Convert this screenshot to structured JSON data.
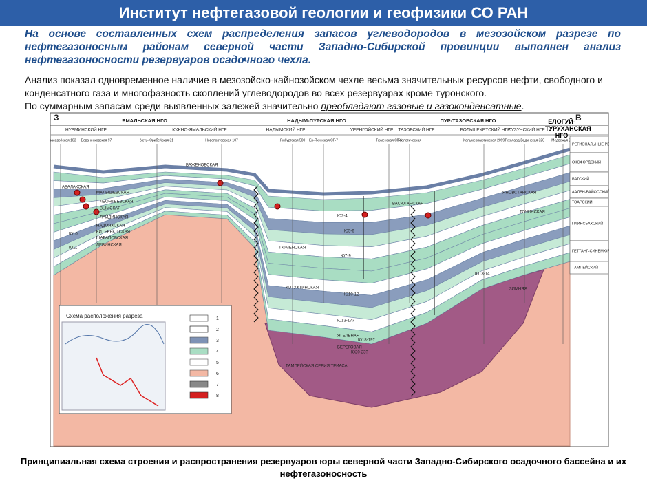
{
  "header": {
    "title": "Институт нефтегазовой геологии и геофизики  СО РАН"
  },
  "intro": {
    "text": "На основе составленных схем распределения запасов углеводородов в мезозойском разрезе по нефтегазоносным районам северной части Западно-Сибирской провинции выполнен анализ нефтегазоносности резервуаров осадочного чехла."
  },
  "body": {
    "line1": "Анализ показал одновременное наличие в мезозойско-кайнозойском чехле весьма значительных ресурсов нефти, свободного и конденсатного газа и многофазность скоплений углеводородов во всех резервуарах кроме туронского.",
    "line2": "По суммарным запасам среди выявленных залежей значительно ",
    "emphasis": "преобладают газовые и газоконденсатные",
    "end": "."
  },
  "diagram": {
    "west": "З",
    "east": "В",
    "regions": [
      "ЯМАЛЬСКАЯ НГО",
      "НАДЫМ-ПУРСКАЯ НГО",
      "ПУР-ТАЗОВСКАЯ НГО",
      "ЕЛОГУЙ-ТУРУХАНСКАЯ НГО"
    ],
    "subregions": [
      "НУРМИНСКИЙ НГР",
      "ЮЖНО-ЯМАЛЬСКИЙ НГР",
      "НАДЫМСКИЙ НГР",
      "УРЕНГОЙСКИЙ НГР",
      "ТАЗОВСКИЙ НГР",
      "БОЛЬШЕХЕТСКИЙ НГР",
      "СУЗУНСКИЙ НГР"
    ],
    "wells": [
      "Харасавэйская 103",
      "Бованенковская 97",
      "Усть-Юрибейская 31",
      "Новопортовская 107",
      "Ямбургская 500",
      "Ен-Яхинская СГ-7",
      "Тюменская СГ-6",
      "Геологическая",
      "Хальмерпаютинская 2099",
      "Тухолард-Вадинская 320",
      "Медвежья 316"
    ],
    "reservoirs": [
      "РЕГИОНАЛЬНЫЕ РЕЗЕРВУАРЫ",
      "ОКСФОРДСКИЙ",
      "БАТСКИЙ",
      "ААЛЕН-БАЙОССКИЙ",
      "ТОАРСКИЙ",
      "ПЛИНСБАХСКИЙ",
      "ГЕТТАНГ-СИНЕМЮРСКИЙ",
      "ТАМПЕЙСКИЙ"
    ],
    "formations": [
      "БАЖЕНОВСКАЯ",
      "АБАЛАКСКАЯ",
      "МАЛЫШЕВСКАЯ",
      "ЛЕОНТЬЕВСКАЯ",
      "ВЫМСКАЯ",
      "ЛАЙДИНСКАЯ",
      "НАДОЯХСКАЯ",
      "КИТЕРБЮТСКАЯ",
      "ШАРАПОВСКАЯ",
      "ЛЕВИНСКАЯ",
      "Ю2-4",
      "Ю5-6",
      "Ю7-9",
      "Ю10",
      "Ю11",
      "ТЮМЕНСКАЯ",
      "КОТУХТИНСКАЯ",
      "Ю10-12",
      "Ю13-17?",
      "ЯГЕЛЬНАЯ",
      "Ю18-19?",
      "БЕРЕГОВАЯ",
      "Ю20-23?",
      "ТАМПЕЙСКАЯ СЕРИЯ ТРИАСА",
      "ЗИМНЯЯ",
      "ЯНОВСТАНСКАЯ",
      "ВАСЮГАНСКАЯ",
      "ТОЧИНСКАЯ",
      "Ю13-14"
    ],
    "inset": {
      "title": "Схема расположения разреза",
      "legend": [
        "1",
        "2",
        "3",
        "4",
        "5",
        "6",
        "7",
        "8"
      ]
    }
  },
  "caption": "Принципиальная схема строения и распространения резервуаров юры северной части Западно-Сибирского осадочного бассейна и их нефтегазоносность"
}
